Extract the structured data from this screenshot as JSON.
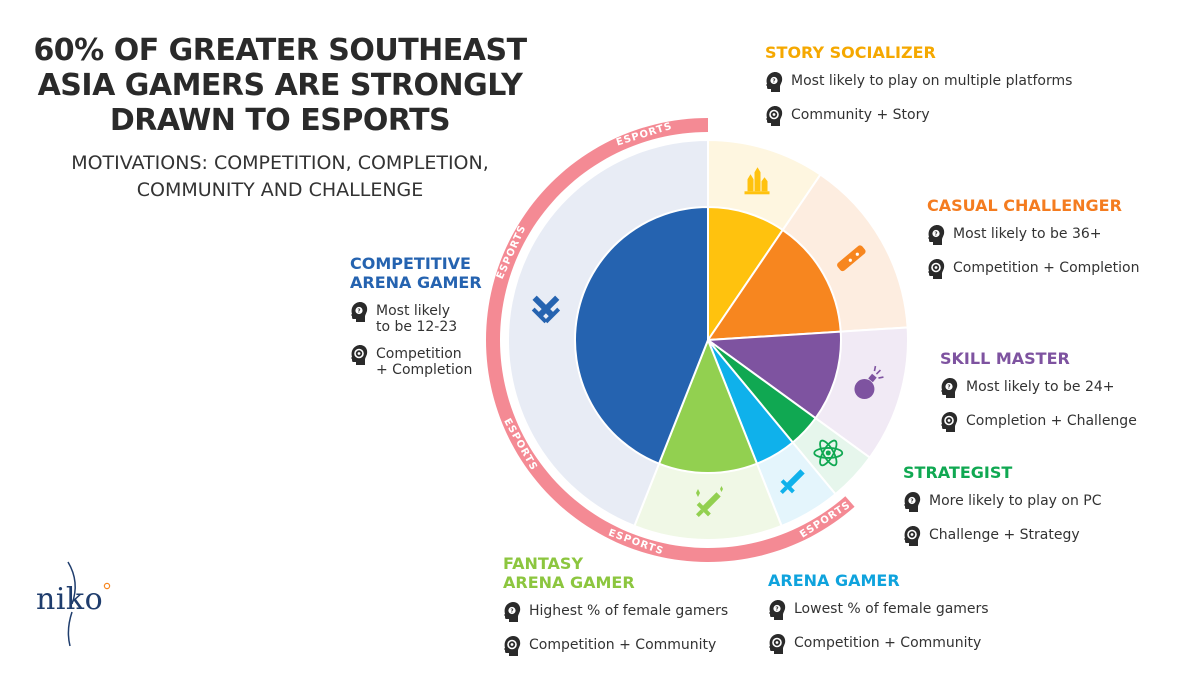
{
  "header": {
    "title_lines": [
      "60% OF GREATER SOUTHEAST",
      "ASIA GAMERS ARE STRONGLY",
      "DRAWN TO ESPORTS"
    ],
    "subtitle_lines": [
      "MOTIVATIONS: COMPETITION, COMPLETION,",
      "COMMUNITY AND CHALLENGE"
    ]
  },
  "ring_label": "ESPORTS",
  "icons": {
    "head_likely": "head-question-icon",
    "head_motive": "head-gear-icon"
  },
  "chart_data": {
    "type": "pie",
    "start_angle_deg": 0,
    "slices": [
      {
        "name": "STORY SOCIALIZER",
        "value": 9.5,
        "color": "#FFC20E",
        "bg": "#FEF6E0",
        "icon": "crystal-icon",
        "esports": false
      },
      {
        "name": "CASUAL CHALLENGER",
        "value": 14.5,
        "color": "#F7861F",
        "bg": "#FDEDE0",
        "icon": "wand-icon",
        "esports": false
      },
      {
        "name": "SKILL MASTER",
        "value": 11,
        "color": "#7E53A0",
        "bg": "#F1EAF5",
        "icon": "bomb-icon",
        "esports": false
      },
      {
        "name": "STRATEGIST",
        "value": 4,
        "color": "#10A852",
        "bg": "#E6F6EC",
        "icon": "atom-icon",
        "esports": false
      },
      {
        "name": "ARENA GAMER",
        "value": 5,
        "color": "#0FB1EB",
        "bg": "#E4F5FC",
        "icon": "sword-icon",
        "esports": true
      },
      {
        "name": "FANTASY ARENA GAMER",
        "value": 12,
        "color": "#92D050",
        "bg": "#F0F8E6",
        "icon": "magic-sword-icon",
        "esports": true
      },
      {
        "name": "COMPETITIVE ARENA GAMER",
        "value": 44,
        "color": "#2563B0",
        "bg": "#E8ECF5",
        "icon": "crossed-swords-icon",
        "esports": true
      }
    ]
  },
  "segments": [
    {
      "title_lines": [
        "STORY SOCIALIZER"
      ],
      "color": "#F5A800",
      "traits": [
        {
          "kind": "likely",
          "lines": [
            "Most likely to play on multiple platforms"
          ]
        },
        {
          "kind": "motive",
          "lines": [
            "Community + Story"
          ]
        }
      ]
    },
    {
      "title_lines": [
        "CASUAL CHALLENGER"
      ],
      "color": "#F47C20",
      "traits": [
        {
          "kind": "likely",
          "lines": [
            "Most likely to be 36+"
          ]
        },
        {
          "kind": "motive",
          "lines": [
            "Competition + Completion"
          ]
        }
      ]
    },
    {
      "title_lines": [
        "SKILL MASTER"
      ],
      "color": "#7E53A0",
      "traits": [
        {
          "kind": "likely",
          "lines": [
            "Most likely to be 24+"
          ]
        },
        {
          "kind": "motive",
          "lines": [
            "Completion + Challenge"
          ]
        }
      ]
    },
    {
      "title_lines": [
        "STRATEGIST"
      ],
      "color": "#10A852",
      "traits": [
        {
          "kind": "likely",
          "lines": [
            "More likely to play on PC"
          ]
        },
        {
          "kind": "motive",
          "lines": [
            "Challenge + Strategy"
          ]
        }
      ]
    },
    {
      "title_lines": [
        "ARENA GAMER"
      ],
      "color": "#0FA3DD",
      "traits": [
        {
          "kind": "likely",
          "lines": [
            "Lowest % of female gamers"
          ]
        },
        {
          "kind": "motive",
          "lines": [
            "Competition + Community"
          ]
        }
      ]
    },
    {
      "title_lines": [
        "FANTASY",
        "ARENA GAMER"
      ],
      "color": "#8CC63F",
      "traits": [
        {
          "kind": "likely",
          "lines": [
            "Highest % of female gamers"
          ]
        },
        {
          "kind": "motive",
          "lines": [
            "Competition + Community"
          ]
        }
      ]
    },
    {
      "title_lines": [
        "COMPETITIVE",
        "ARENA GAMER"
      ],
      "color": "#2563B0",
      "traits": [
        {
          "kind": "likely",
          "lines": [
            "Most likely",
            "to be 12-23"
          ]
        },
        {
          "kind": "motive",
          "lines": [
            "Competition",
            "+ Completion"
          ]
        }
      ]
    }
  ],
  "logo": {
    "text": "niko"
  }
}
